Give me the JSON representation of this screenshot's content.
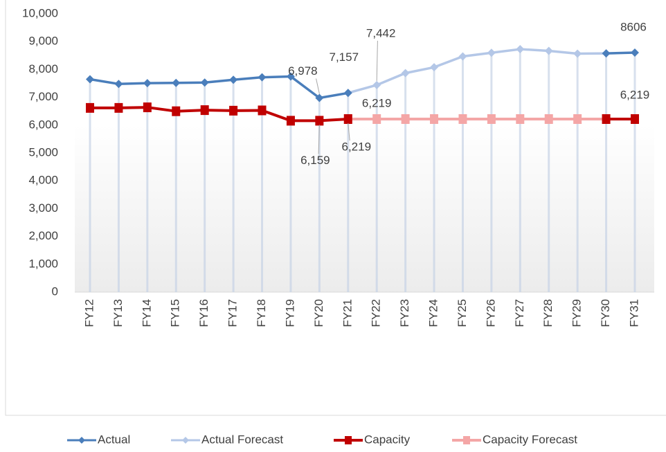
{
  "chart_data": {
    "type": "line",
    "categories": [
      "FY12",
      "FY13",
      "FY14",
      "FY15",
      "FY16",
      "FY17",
      "FY18",
      "FY19",
      "FY20",
      "FY21",
      "FY22",
      "FY23",
      "FY24",
      "FY25",
      "FY26",
      "FY27",
      "FY28",
      "FY29",
      "FY30",
      "FY31"
    ],
    "series": [
      {
        "name": "Actual",
        "color": "#4a7ebb",
        "marker": "diamond",
        "values": [
          7650,
          7480,
          7510,
          7520,
          7530,
          7630,
          7720,
          7750,
          6978,
          7157,
          null,
          null,
          null,
          null,
          null,
          null,
          null,
          null,
          8580,
          8606
        ],
        "value_labels": [
          null,
          null,
          null,
          null,
          null,
          null,
          null,
          null,
          "6,978",
          "7,157",
          null,
          null,
          null,
          null,
          null,
          null,
          null,
          null,
          null,
          "8606"
        ]
      },
      {
        "name": "Actual Forecast",
        "color": "#b4c7e7",
        "marker": "diamond",
        "values": [
          null,
          null,
          null,
          null,
          null,
          null,
          null,
          null,
          null,
          7157,
          7442,
          7870,
          8080,
          8470,
          8600,
          8730,
          8670,
          8570,
          8580,
          null
        ],
        "value_labels": [
          null,
          null,
          null,
          null,
          null,
          null,
          null,
          null,
          null,
          null,
          "7,442",
          null,
          null,
          null,
          null,
          null,
          null,
          null,
          null,
          null
        ]
      },
      {
        "name": "Capacity",
        "color": "#c00000",
        "marker": "square",
        "values": [
          6620,
          6620,
          6640,
          6500,
          6540,
          6520,
          6530,
          6159,
          6159,
          6219,
          null,
          null,
          null,
          null,
          null,
          null,
          null,
          null,
          6219,
          6219
        ],
        "value_labels": [
          null,
          null,
          null,
          null,
          null,
          null,
          null,
          null,
          "6,159",
          "6,219",
          null,
          null,
          null,
          null,
          null,
          null,
          null,
          null,
          null,
          "6,219"
        ]
      },
      {
        "name": "Capacity Forecast",
        "color": "#f4a6a6",
        "marker": "square",
        "values": [
          null,
          null,
          null,
          null,
          null,
          null,
          null,
          null,
          null,
          6219,
          6219,
          6219,
          6219,
          6219,
          6219,
          6219,
          6219,
          6219,
          6219,
          null
        ],
        "value_labels": [
          null,
          null,
          null,
          null,
          null,
          null,
          null,
          null,
          null,
          null,
          "6,219",
          null,
          null,
          null,
          null,
          null,
          null,
          null,
          null,
          null
        ]
      }
    ],
    "ylim": [
      0,
      10000
    ],
    "yticks": [
      0,
      {
        "value": 1000,
        "label": "1,000"
      },
      {
        "value": 2000,
        "label": "2,000"
      },
      {
        "value": 3000,
        "label": "3,000"
      },
      {
        "value": 4000,
        "label": "4,000"
      },
      {
        "value": 5000,
        "label": "5,000"
      },
      {
        "value": 6000,
        "label": "6,000"
      },
      {
        "value": 7000,
        "label": "7,000"
      },
      {
        "value": 8000,
        "label": "8,000"
      },
      {
        "value": 9000,
        "label": "9,000"
      },
      {
        "value": 10000,
        "label": "10,000"
      }
    ],
    "legend": "bottom"
  }
}
